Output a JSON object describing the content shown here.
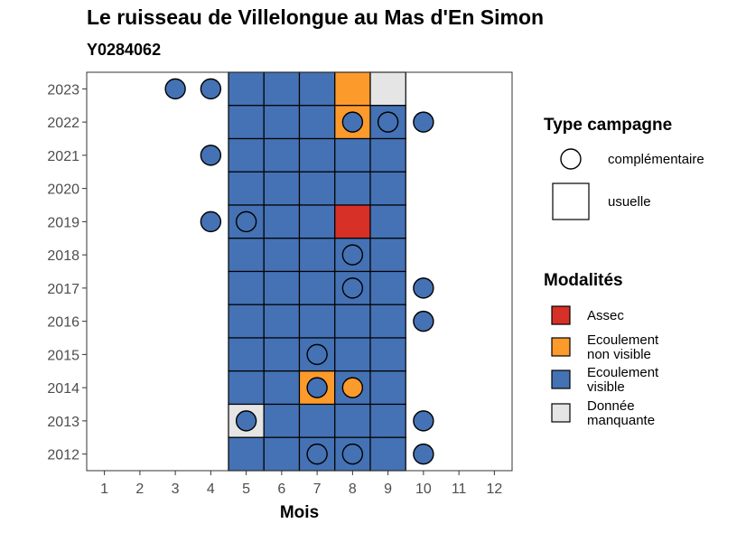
{
  "chart_data": {
    "type": "heatmap",
    "title": "Le ruisseau de Villelongue au Mas d'En Simon",
    "subtitle": "Y0284062",
    "xlabel": "Mois",
    "ylabel": "",
    "x_ticks": [
      1,
      2,
      3,
      4,
      5,
      6,
      7,
      8,
      9,
      10,
      11,
      12
    ],
    "y_ticks": [
      2012,
      2013,
      2014,
      2015,
      2016,
      2017,
      2018,
      2019,
      2020,
      2021,
      2022,
      2023
    ],
    "xlim": [
      0.5,
      12.5
    ],
    "ylim": [
      2011.5,
      2023.5
    ],
    "grid": false,
    "legend_placement": "right",
    "legend_shape": {
      "title": "Type campagne",
      "items": [
        {
          "key": "complementaire",
          "label": "complémentaire",
          "shape": "circle"
        },
        {
          "key": "usuelle",
          "label": "usuelle",
          "shape": "square"
        }
      ]
    },
    "legend_fill": {
      "title": "Modalités",
      "items": [
        {
          "key": "assec",
          "label_lines": [
            "Assec"
          ],
          "color": "#d73027"
        },
        {
          "key": "ecoulement_non_visible",
          "label_lines": [
            "Ecoulement",
            "non visible"
          ],
          "color": "#fd9a2c"
        },
        {
          "key": "ecoulement_visible",
          "label_lines": [
            "Ecoulement",
            "visible"
          ],
          "color": "#4472b4"
        },
        {
          "key": "donnee_manquante",
          "label_lines": [
            "Donnée",
            "manquante"
          ],
          "color": "#e5e5e5"
        }
      ]
    },
    "usuelle": [
      {
        "year": 2023,
        "cells": {
          "5": "ecoulement_visible",
          "6": "ecoulement_visible",
          "7": "ecoulement_visible",
          "8": "ecoulement_non_visible",
          "9": "donnee_manquante"
        }
      },
      {
        "year": 2022,
        "cells": {
          "5": "ecoulement_visible",
          "6": "ecoulement_visible",
          "7": "ecoulement_visible",
          "8": "ecoulement_non_visible",
          "9": "ecoulement_visible"
        }
      },
      {
        "year": 2021,
        "cells": {
          "5": "ecoulement_visible",
          "6": "ecoulement_visible",
          "7": "ecoulement_visible",
          "8": "ecoulement_visible",
          "9": "ecoulement_visible"
        }
      },
      {
        "year": 2020,
        "cells": {
          "5": "ecoulement_visible",
          "6": "ecoulement_visible",
          "7": "ecoulement_visible",
          "8": "ecoulement_visible",
          "9": "ecoulement_visible"
        }
      },
      {
        "year": 2019,
        "cells": {
          "5": "ecoulement_visible",
          "6": "ecoulement_visible",
          "7": "ecoulement_visible",
          "8": "assec",
          "9": "ecoulement_visible"
        }
      },
      {
        "year": 2018,
        "cells": {
          "5": "ecoulement_visible",
          "6": "ecoulement_visible",
          "7": "ecoulement_visible",
          "8": "ecoulement_visible",
          "9": "ecoulement_visible"
        }
      },
      {
        "year": 2017,
        "cells": {
          "5": "ecoulement_visible",
          "6": "ecoulement_visible",
          "7": "ecoulement_visible",
          "8": "ecoulement_visible",
          "9": "ecoulement_visible"
        }
      },
      {
        "year": 2016,
        "cells": {
          "5": "ecoulement_visible",
          "6": "ecoulement_visible",
          "7": "ecoulement_visible",
          "8": "ecoulement_visible",
          "9": "ecoulement_visible"
        }
      },
      {
        "year": 2015,
        "cells": {
          "5": "ecoulement_visible",
          "6": "ecoulement_visible",
          "7": "ecoulement_visible",
          "8": "ecoulement_visible",
          "9": "ecoulement_visible"
        }
      },
      {
        "year": 2014,
        "cells": {
          "5": "ecoulement_visible",
          "6": "ecoulement_visible",
          "7": "ecoulement_non_visible",
          "8": "ecoulement_visible",
          "9": "ecoulement_visible"
        }
      },
      {
        "year": 2013,
        "cells": {
          "5": "donnee_manquante",
          "6": "ecoulement_visible",
          "7": "ecoulement_visible",
          "8": "ecoulement_visible",
          "9": "ecoulement_visible"
        }
      },
      {
        "year": 2012,
        "cells": {
          "5": "ecoulement_visible",
          "6": "ecoulement_visible",
          "7": "ecoulement_visible",
          "8": "ecoulement_visible",
          "9": "ecoulement_visible"
        }
      }
    ],
    "complementaire": [
      {
        "year": 2023,
        "month": 3,
        "value": "ecoulement_visible"
      },
      {
        "year": 2023,
        "month": 4,
        "value": "ecoulement_visible"
      },
      {
        "year": 2022,
        "month": 8,
        "value": "ecoulement_visible"
      },
      {
        "year": 2022,
        "month": 9,
        "value": "ecoulement_visible"
      },
      {
        "year": 2022,
        "month": 10,
        "value": "ecoulement_visible"
      },
      {
        "year": 2021,
        "month": 4,
        "value": "ecoulement_visible"
      },
      {
        "year": 2019,
        "month": 4,
        "value": "ecoulement_visible"
      },
      {
        "year": 2019,
        "month": 5,
        "value": "ecoulement_visible"
      },
      {
        "year": 2018,
        "month": 8,
        "value": "ecoulement_visible"
      },
      {
        "year": 2017,
        "month": 8,
        "value": "ecoulement_visible"
      },
      {
        "year": 2017,
        "month": 10,
        "value": "ecoulement_visible"
      },
      {
        "year": 2016,
        "month": 10,
        "value": "ecoulement_visible"
      },
      {
        "year": 2015,
        "month": 7,
        "value": "ecoulement_visible"
      },
      {
        "year": 2014,
        "month": 7,
        "value": "ecoulement_visible"
      },
      {
        "year": 2014,
        "month": 8,
        "value": "ecoulement_non_visible"
      },
      {
        "year": 2013,
        "month": 5,
        "value": "ecoulement_visible"
      },
      {
        "year": 2013,
        "month": 10,
        "value": "ecoulement_visible"
      },
      {
        "year": 2012,
        "month": 7,
        "value": "ecoulement_visible"
      },
      {
        "year": 2012,
        "month": 8,
        "value": "ecoulement_visible"
      },
      {
        "year": 2012,
        "month": 10,
        "value": "ecoulement_visible"
      }
    ]
  }
}
